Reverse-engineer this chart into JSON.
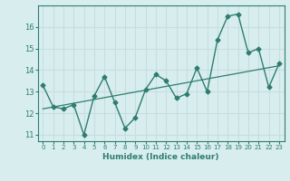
{
  "x": [
    0,
    1,
    2,
    3,
    4,
    5,
    6,
    7,
    8,
    9,
    10,
    11,
    12,
    13,
    14,
    15,
    16,
    17,
    18,
    19,
    20,
    21,
    22,
    23
  ],
  "y": [
    13.3,
    12.3,
    12.2,
    12.4,
    11.0,
    12.8,
    13.7,
    12.5,
    11.3,
    11.8,
    13.1,
    13.8,
    13.5,
    12.7,
    12.9,
    14.1,
    13.0,
    15.4,
    16.5,
    16.6,
    14.8,
    15.0,
    13.2,
    14.3
  ],
  "trend_x": [
    0,
    23
  ],
  "trend_y": [
    12.2,
    14.2
  ],
  "line_color": "#2e7d6e",
  "bg_color": "#d8eeee",
  "grid_color": "#c8dede",
  "xlabel": "Humidex (Indice chaleur)",
  "ylim": [
    10.7,
    17.0
  ],
  "xlim": [
    -0.5,
    23.5
  ],
  "yticks": [
    11,
    12,
    13,
    14,
    15,
    16
  ],
  "xticks": [
    0,
    1,
    2,
    3,
    4,
    5,
    6,
    7,
    8,
    9,
    10,
    11,
    12,
    13,
    14,
    15,
    16,
    17,
    18,
    19,
    20,
    21,
    22,
    23
  ]
}
